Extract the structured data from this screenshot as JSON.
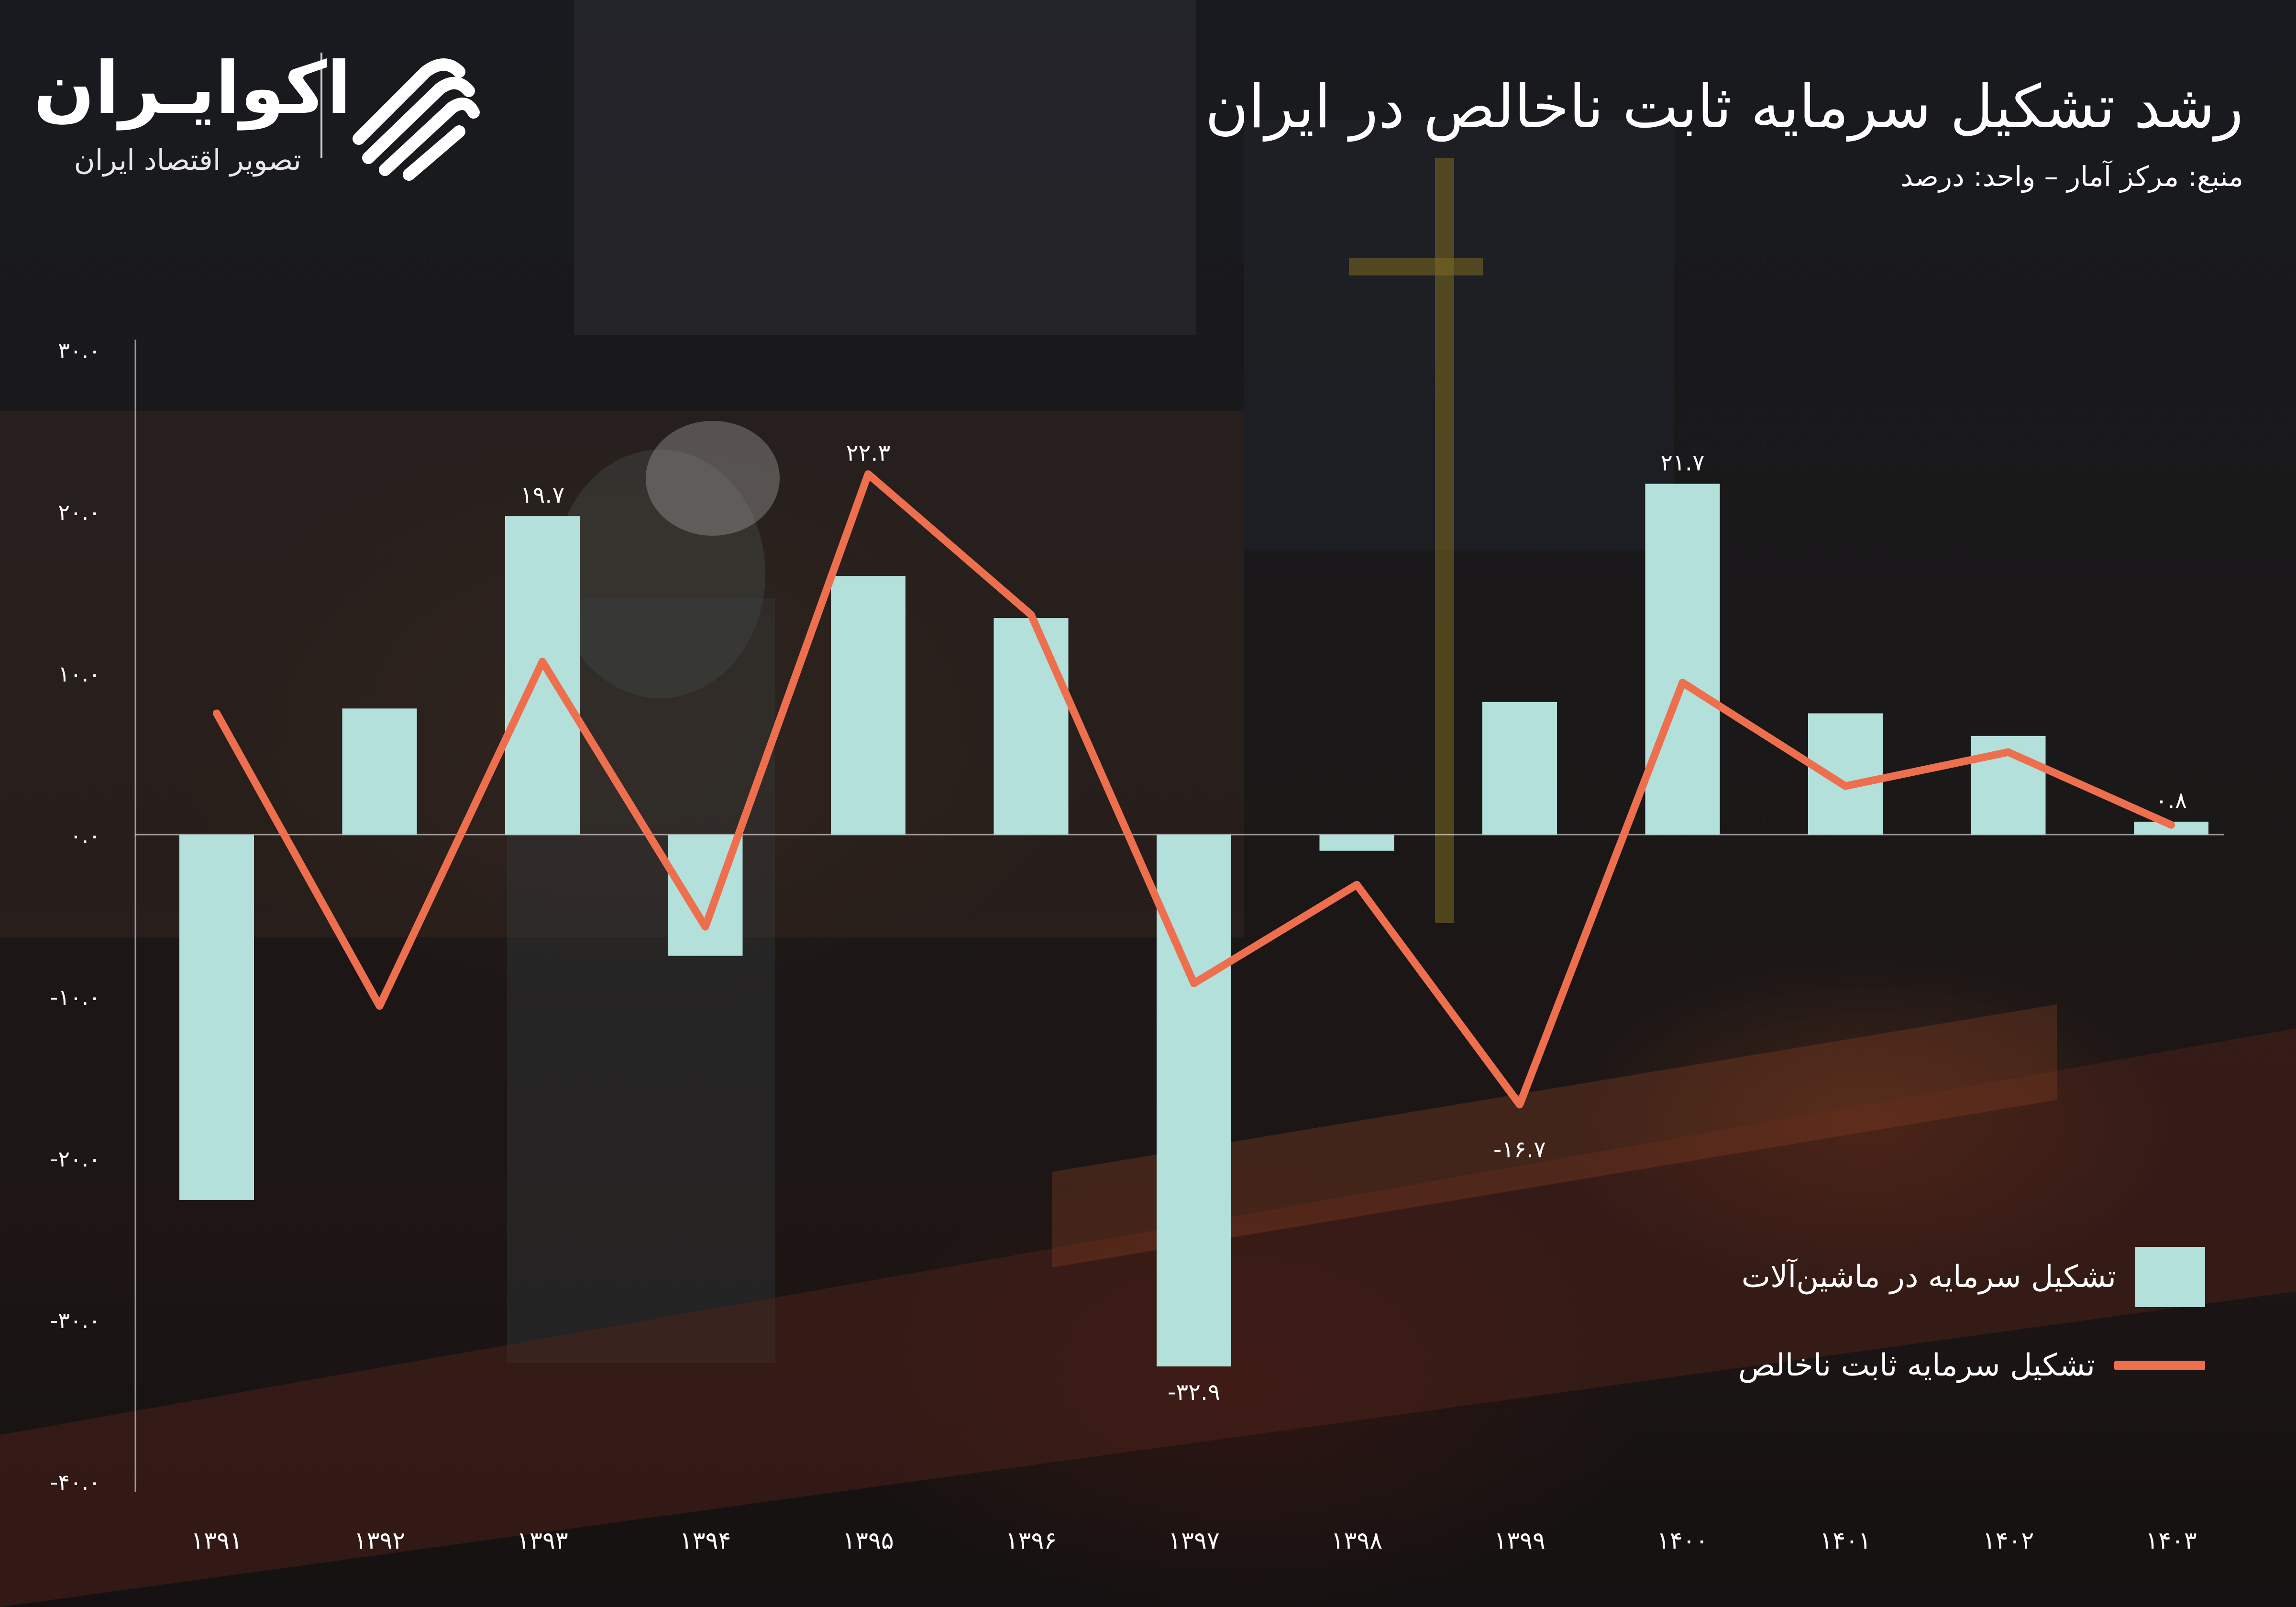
{
  "brand": {
    "name": "اکوایـران",
    "tagline": "تصویر اقتصاد ایران"
  },
  "header": {
    "title": "رشد تشکیل سرمایه ثابت ناخالص در ایران",
    "source_line": "منبع: مرکز آمار – واحد: درصد"
  },
  "legend": {
    "bar_label": "تشکیل سرمایه در ماشین‌آلات",
    "line_label": "تشکیل سرمایه ثابت ناخالص"
  },
  "colors": {
    "bar": "#b3e0da",
    "line": "#ee6f4e",
    "text": "#ffffff"
  },
  "chart_data": {
    "type": "bar",
    "categories": [
      "۱۳۹۱",
      "۱۳۹۲",
      "۱۳۹۳",
      "۱۳۹۴",
      "۱۳۹۵",
      "۱۳۹۶",
      "۱۳۹۷",
      "۱۳۹۸",
      "۱۳۹۹",
      "۱۴۰۰",
      "۱۴۰۱",
      "۱۴۰۲",
      "۱۴۰۳"
    ],
    "series": [
      {
        "name": "تشکیل سرمایه در ماشین‌آلات",
        "type": "bar",
        "values": [
          -22.6,
          7.8,
          19.7,
          -7.5,
          16.0,
          13.4,
          -32.9,
          -1.0,
          8.2,
          21.7,
          7.5,
          6.1,
          0.8
        ]
      },
      {
        "name": "تشکیل سرمایه ثابت ناخالص",
        "type": "line",
        "values": [
          7.5,
          -10.6,
          10.7,
          -5.7,
          22.3,
          13.6,
          -9.2,
          -3.1,
          -16.7,
          9.4,
          3.0,
          5.1,
          0.6
        ]
      }
    ],
    "data_labels": [
      {
        "series": 0,
        "index": 2,
        "text": "۱۹.۷"
      },
      {
        "series": 1,
        "index": 4,
        "text": "۲۲.۳"
      },
      {
        "series": 0,
        "index": 6,
        "text": "-۳۲.۹"
      },
      {
        "series": 1,
        "index": 8,
        "text": "-۱۶.۷"
      },
      {
        "series": 0,
        "index": 9,
        "text": "۲۱.۷"
      },
      {
        "series": 0,
        "index": 12,
        "text": "۰.۸"
      }
    ],
    "y_ticks": [
      30,
      20,
      10,
      0,
      -10,
      -20,
      -30,
      -40
    ],
    "y_tick_labels": [
      "۳۰.۰",
      "۲۰.۰",
      "۱۰.۰",
      "۰.۰",
      "-۱۰.۰",
      "-۲۰.۰",
      "-۳۰.۰",
      "-۴۰.۰"
    ],
    "ylim": [
      -40,
      30
    ],
    "grid": false,
    "legend_position": "bottom-right"
  }
}
